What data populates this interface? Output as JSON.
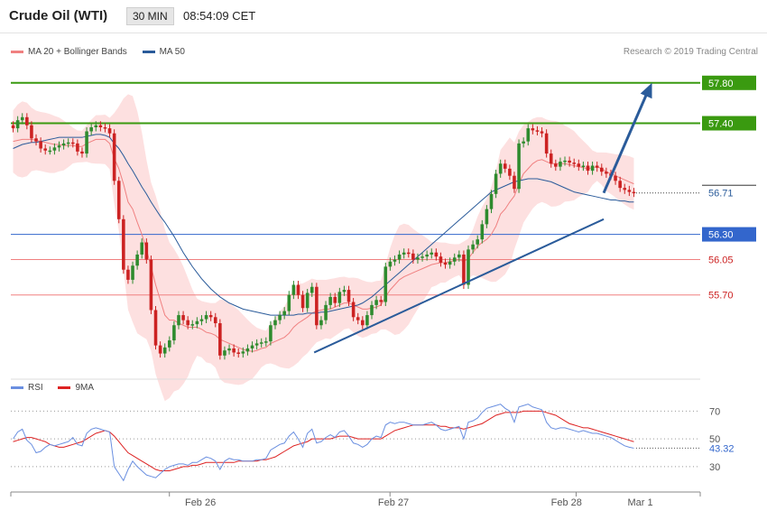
{
  "header": {
    "title": "Crude Oil (WTI)",
    "interval": "30 MIN",
    "time": "08:54:09 CET"
  },
  "legend": {
    "ma20_bb": "MA 20 + Bollinger Bands",
    "ma50": "MA 50",
    "rsi": "RSI",
    "ma9": "9MA"
  },
  "copyright": "Research © 2019 Trading Central",
  "colors": {
    "ma20": "#f08080",
    "bollinger_fill": "#fde0e0",
    "ma50": "#2a5b9a",
    "resistance": "#3a9a10",
    "pivot": "#3366cc",
    "support": "#f08080",
    "arrow": "#2a5b9a",
    "candle_up": "#2e8b2e",
    "candle_down": "#cc2222",
    "rsi": "#6a8fe0",
    "rsi_ma": "#dd2222"
  },
  "chart_data": [
    {
      "type": "candlestick",
      "x_ticks": [
        "Feb 26",
        "Feb 27",
        "Feb 28",
        "Mar 1"
      ],
      "y_range": [
        55.0,
        57.95
      ],
      "levels": [
        {
          "label": "57.80",
          "value": 57.8,
          "kind": "resistance"
        },
        {
          "label": "57.40",
          "value": 57.4,
          "kind": "resistance"
        },
        {
          "label": "56.71",
          "value": 56.71,
          "kind": "last_price"
        },
        {
          "label": "56.30",
          "value": 56.3,
          "kind": "pivot"
        },
        {
          "label": "56.05",
          "value": 56.05,
          "kind": "support"
        },
        {
          "label": "55.70",
          "value": 55.7,
          "kind": "support"
        }
      ],
      "close_series": [
        57.35,
        57.43,
        57.46,
        57.38,
        57.25,
        57.22,
        57.15,
        57.13,
        57.13,
        57.16,
        57.18,
        57.2,
        57.21,
        57.2,
        57.12,
        57.1,
        57.32,
        57.36,
        57.38,
        57.36,
        57.35,
        57.3,
        56.83,
        56.45,
        55.95,
        55.85,
        55.99,
        56.1,
        56.22,
        56.05,
        55.55,
        55.2,
        55.12,
        55.18,
        55.25,
        55.4,
        55.5,
        55.45,
        55.4,
        55.41,
        55.44,
        55.46,
        55.5,
        55.48,
        55.42,
        55.1,
        55.15,
        55.17,
        55.13,
        55.12,
        55.14,
        55.17,
        55.2,
        55.22,
        55.23,
        55.24,
        55.4,
        55.45,
        55.5,
        55.54,
        55.7,
        55.8,
        55.7,
        55.57,
        55.72,
        55.78,
        55.4,
        55.45,
        55.6,
        55.68,
        55.62,
        55.73,
        55.75,
        55.63,
        55.48,
        55.45,
        55.4,
        55.5,
        55.6,
        55.65,
        55.63,
        55.98,
        56.03,
        56.05,
        56.1,
        56.12,
        56.11,
        56.05,
        56.07,
        56.08,
        56.1,
        56.12,
        56.08,
        56.02,
        56.0,
        56.03,
        56.07,
        56.1,
        55.8,
        56.15,
        56.2,
        56.25,
        56.4,
        56.55,
        56.7,
        56.9,
        57.0,
        56.95,
        56.88,
        56.75,
        57.2,
        57.22,
        57.35,
        57.33,
        57.32,
        57.3,
        57.1,
        57.0,
        56.97,
        57.02,
        57.03,
        57.01,
        57.0,
        56.97,
        56.98,
        56.93,
        56.98,
        56.96,
        56.92,
        56.9,
        56.88,
        56.83,
        56.76,
        56.74,
        56.72,
        56.71
      ],
      "ma20": [
        57.22,
        57.23,
        57.24,
        57.24,
        57.24,
        57.23,
        57.22,
        57.21,
        57.2,
        57.19,
        57.19,
        57.18,
        57.18,
        57.18,
        57.17,
        57.17,
        57.2,
        57.22,
        57.24,
        57.24,
        57.24,
        57.2,
        57.05,
        56.95,
        56.8,
        56.62,
        56.55,
        56.42,
        56.3,
        56.15,
        55.98,
        55.8,
        55.65,
        55.5,
        55.45,
        55.45,
        55.42,
        55.4,
        55.38,
        55.38,
        55.38,
        55.36,
        55.33,
        55.32,
        55.3,
        55.26,
        55.24,
        55.22,
        55.2,
        55.18,
        55.16,
        55.15,
        55.14,
        55.15,
        55.17,
        55.18,
        55.22,
        55.24,
        55.26,
        55.28,
        55.32,
        55.38,
        55.42,
        55.45,
        55.48,
        55.52,
        55.54,
        55.55,
        55.56,
        55.56,
        55.58,
        55.6,
        55.62,
        55.62,
        55.6,
        55.58,
        55.56,
        55.56,
        55.57,
        55.58,
        55.6,
        55.68,
        55.75,
        55.8,
        55.85,
        55.88,
        55.9,
        55.92,
        55.94,
        55.96,
        55.98,
        56.0,
        56.01,
        56.02,
        56.02,
        56.03,
        56.04,
        56.05,
        56.03,
        56.06,
        56.12,
        56.18,
        56.22,
        56.25,
        56.3,
        56.38,
        56.5,
        56.55,
        56.62,
        56.68,
        56.8,
        56.9,
        56.95,
        57.0,
        57.03,
        57.04,
        57.02,
        57.0,
        57.0,
        57.0,
        57.0,
        56.99,
        56.98,
        56.97,
        56.96,
        56.95,
        56.96,
        56.97,
        56.95,
        56.92,
        56.9,
        56.88,
        56.86,
        56.84,
        56.82,
        56.8
      ],
      "ma50": [
        57.15,
        57.17,
        57.19,
        57.2,
        57.21,
        57.21,
        57.22,
        57.23,
        57.24,
        57.25,
        57.26,
        57.26,
        57.26,
        57.26,
        57.26,
        57.26,
        57.27,
        57.28,
        57.29,
        57.29,
        57.28,
        57.26,
        57.2,
        57.15,
        57.08,
        57.0,
        56.93,
        56.85,
        56.77,
        56.7,
        56.62,
        56.55,
        56.48,
        56.42,
        56.35,
        56.28,
        56.2,
        56.12,
        56.05,
        55.98,
        55.92,
        55.86,
        55.81,
        55.76,
        55.72,
        55.68,
        55.65,
        55.62,
        55.6,
        55.58,
        55.56,
        55.55,
        55.54,
        55.53,
        55.52,
        55.51,
        55.5,
        55.5,
        55.5,
        55.5,
        55.5,
        55.5,
        55.51,
        55.51,
        55.52,
        55.52,
        55.52,
        55.53,
        55.53,
        55.54,
        55.55,
        55.56,
        55.57,
        55.58,
        55.59,
        55.6,
        55.62,
        55.65,
        55.68,
        55.72,
        55.76,
        55.8,
        55.84,
        55.88,
        55.92,
        55.96,
        56.0,
        56.04,
        56.08,
        56.12,
        56.16,
        56.2,
        56.24,
        56.28,
        56.32,
        56.36,
        56.4,
        56.44,
        56.48,
        56.52,
        56.56,
        56.6,
        56.64,
        56.68,
        56.72,
        56.74,
        56.76,
        56.78,
        56.8,
        56.82,
        56.83,
        56.84,
        56.85,
        56.85,
        56.85,
        56.84,
        56.83,
        56.82,
        56.8,
        56.78,
        56.76,
        56.74,
        56.72,
        56.71,
        56.7,
        56.69,
        56.68,
        56.67,
        56.66,
        56.65,
        56.64,
        56.64,
        56.63,
        56.63,
        56.62,
        56.62
      ],
      "trendlines": [
        {
          "from": [
            0.44,
            55.13
          ],
          "to": [
            0.86,
            56.45
          ]
        }
      ],
      "arrow": {
        "from": [
          0.86,
          56.71
        ],
        "to": [
          0.93,
          57.8
        ]
      }
    },
    {
      "type": "line",
      "name": "RSI panel",
      "y_ticks": [
        70,
        50,
        30
      ],
      "last_value_label": "43.32",
      "rsi": [
        50,
        55,
        57,
        49,
        46,
        40,
        41,
        44,
        46,
        45,
        46,
        47,
        48,
        51,
        46,
        45,
        54,
        57,
        58,
        57,
        56,
        55,
        30,
        25,
        20,
        28,
        34,
        30,
        27,
        24,
        23,
        22,
        25,
        28,
        30,
        31,
        32,
        32,
        31,
        33,
        33,
        35,
        37,
        36,
        34,
        28,
        34,
        36,
        35,
        35,
        34,
        34,
        34,
        35,
        35,
        36,
        42,
        44,
        46,
        47,
        52,
        55,
        50,
        44,
        54,
        57,
        47,
        48,
        51,
        53,
        51,
        55,
        56,
        52,
        47,
        46,
        44,
        46,
        50,
        52,
        51,
        60,
        62,
        61,
        62,
        62,
        61,
        60,
        60,
        60,
        61,
        62,
        60,
        57,
        56,
        57,
        58,
        59,
        50,
        62,
        63,
        65,
        69,
        72,
        73,
        74,
        75,
        72,
        70,
        62,
        73,
        74,
        75,
        73,
        72,
        71,
        62,
        58,
        57,
        58,
        58,
        57,
        56,
        55,
        56,
        55,
        54,
        54,
        53,
        52,
        51,
        49,
        47,
        45,
        44,
        43.32
      ],
      "ma9": [
        48,
        49,
        50,
        51,
        51,
        50,
        49,
        48,
        46,
        45,
        44,
        44,
        45,
        46,
        47,
        48,
        50,
        52,
        54,
        55,
        56,
        55,
        52,
        48,
        44,
        40,
        38,
        36,
        34,
        32,
        30,
        28,
        27,
        27,
        27,
        28,
        29,
        30,
        30,
        31,
        31,
        32,
        33,
        33,
        33,
        33,
        33,
        33,
        33,
        34,
        34,
        34,
        34,
        34,
        35,
        35,
        36,
        37,
        39,
        41,
        43,
        45,
        46,
        47,
        48,
        50,
        50,
        50,
        50,
        50,
        51,
        52,
        52,
        52,
        51,
        50,
        50,
        50,
        50,
        50,
        50,
        52,
        54,
        56,
        57,
        58,
        59,
        60,
        60,
        60,
        60,
        60,
        60,
        59,
        59,
        58,
        58,
        58,
        57,
        58,
        59,
        60,
        61,
        63,
        65,
        67,
        68,
        69,
        69,
        69,
        69,
        70,
        70,
        70,
        70,
        70,
        69,
        68,
        67,
        65,
        63,
        61,
        60,
        59,
        58,
        58,
        57,
        56,
        55,
        54,
        53,
        52,
        51,
        50,
        49,
        48
      ]
    }
  ]
}
